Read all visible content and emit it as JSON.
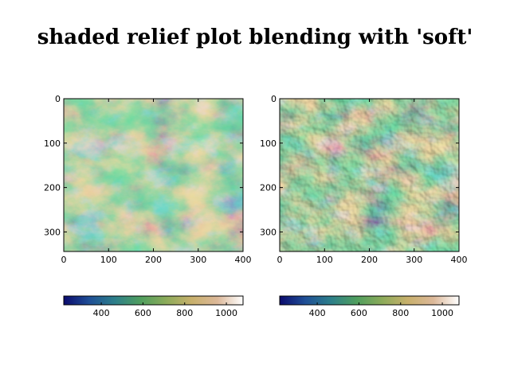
{
  "chart_data": {
    "type": "heatmap",
    "title": "shaded relief plot blending with 'soft'",
    "panels": [
      {
        "name": "left",
        "shading": "plain",
        "x_ticks": [
          0,
          100,
          200,
          300,
          400
        ],
        "y_ticks": [
          0,
          100,
          200,
          300
        ],
        "xlim": [
          0,
          400
        ],
        "ylim": [
          344,
          0
        ],
        "colorbar": {
          "ticks": [
            400,
            600,
            800,
            1000
          ],
          "range": [
            220,
            1080
          ],
          "colormap": "gist_earth"
        }
      },
      {
        "name": "right",
        "shading": "soft blend hillshade",
        "x_ticks": [
          0,
          100,
          200,
          300,
          400
        ],
        "y_ticks": [
          0,
          100,
          200,
          300
        ],
        "xlim": [
          0,
          400
        ],
        "ylim": [
          344,
          0
        ],
        "colorbar": {
          "ticks": [
            400,
            600,
            800,
            1000
          ],
          "range": [
            220,
            1080
          ],
          "colormap": "gist_earth"
        }
      }
    ],
    "colormap_stops": [
      "#0b0b6e",
      "#1f4f96",
      "#2d7f8a",
      "#4f9e5e",
      "#8cab5a",
      "#c8b06c",
      "#dcb899",
      "#ffffff"
    ]
  }
}
